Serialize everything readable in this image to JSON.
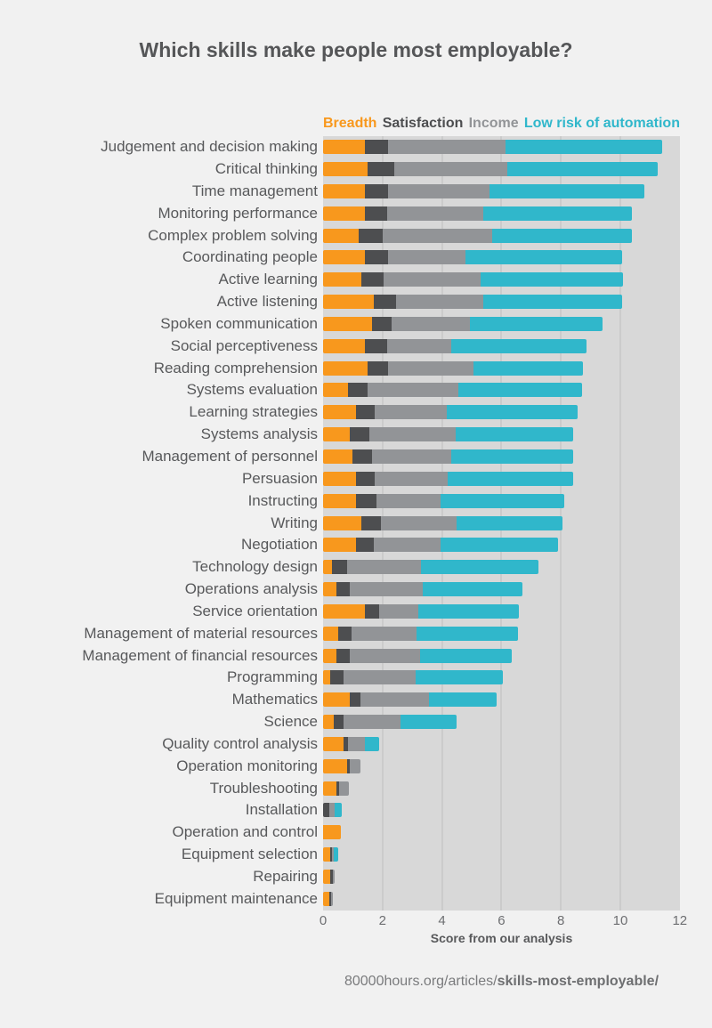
{
  "citation": {
    "prefix": "80000hours.org/articles/",
    "bold": "skills-most-employable/"
  },
  "chart_data": {
    "type": "bar",
    "stacked": true,
    "orientation": "horizontal",
    "title": "Which skills make people most employable?",
    "xlabel": "Score from our analysis",
    "xlim": [
      0,
      12
    ],
    "xticks": [
      0,
      2,
      4,
      6,
      8,
      10,
      12
    ],
    "grid": "vertical-light",
    "legend_position": "top",
    "plot_background": "#D8D8D8",
    "page_background": "#F1F1F1",
    "categories": [
      "Judgement and decision making",
      "Critical thinking",
      "Time management",
      "Monitoring performance",
      "Complex problem solving",
      "Coordinating people",
      "Active learning",
      "Active listening",
      "Spoken communication",
      "Social perceptiveness",
      "Reading comprehension",
      "Systems evaluation",
      "Learning strategies",
      "Systems analysis",
      "Management of personnel",
      "Persuasion",
      "Instructing",
      "Writing",
      "Negotiation",
      "Technology design",
      "Operations analysis",
      "Service orientation",
      "Management of material resources",
      "Management of financial resources",
      "Programming",
      "Mathematics",
      "Science",
      "Quality control analysis",
      "Operation monitoring",
      "Troubleshooting",
      "Installation",
      "Operation and control",
      "Equipment selection",
      "Repairing",
      "Equipment maintenance"
    ],
    "series": [
      {
        "name": "Breadth",
        "slug": "breadth",
        "color": "#F8981D",
        "values": [
          1.4,
          1.5,
          1.4,
          1.4,
          1.2,
          1.4,
          1.3,
          1.7,
          1.65,
          1.4,
          1.5,
          0.85,
          1.1,
          0.9,
          1.0,
          1.1,
          1.1,
          1.3,
          1.1,
          0.3,
          0.45,
          1.4,
          0.5,
          0.45,
          0.25,
          0.9,
          0.35,
          0.7,
          0.8,
          0.45,
          0,
          0.6,
          0.25,
          0.25,
          0.2
        ]
      },
      {
        "name": "Satisfaction",
        "slug": "satisfaction",
        "color": "#4D4E50",
        "values": [
          0.8,
          0.9,
          0.8,
          0.75,
          0.8,
          0.8,
          0.75,
          0.75,
          0.65,
          0.75,
          0.7,
          0.65,
          0.65,
          0.65,
          0.65,
          0.65,
          0.7,
          0.65,
          0.6,
          0.5,
          0.45,
          0.5,
          0.45,
          0.45,
          0.45,
          0.35,
          0.35,
          0.15,
          0.1,
          0.1,
          0.2,
          0,
          0.05,
          0.07,
          0.06
        ]
      },
      {
        "name": "Income",
        "slug": "income",
        "color": "#929497",
        "values": [
          3.95,
          3.8,
          3.4,
          3.25,
          3.7,
          2.6,
          3.25,
          2.95,
          2.65,
          2.15,
          2.85,
          3.05,
          2.4,
          2.9,
          2.65,
          2.45,
          2.15,
          2.55,
          2.25,
          2.5,
          2.45,
          1.3,
          2.2,
          2.35,
          2.4,
          2.3,
          1.9,
          0.55,
          0.35,
          0.33,
          0.18,
          0,
          0.06,
          0.08,
          0.06
        ]
      },
      {
        "name": "Low risk of automation",
        "slug": "low-risk-of-automation",
        "color": "#30B7CB",
        "values": [
          5.25,
          5.05,
          5.2,
          5.0,
          4.7,
          5.25,
          4.8,
          4.65,
          4.45,
          4.55,
          3.7,
          4.15,
          4.4,
          3.95,
          4.1,
          4.2,
          4.15,
          3.55,
          3.95,
          3.95,
          3.35,
          3.4,
          3.4,
          3.1,
          2.95,
          2.3,
          1.9,
          0.5,
          0,
          0,
          0.25,
          0,
          0.15,
          0,
          0
        ]
      }
    ]
  }
}
